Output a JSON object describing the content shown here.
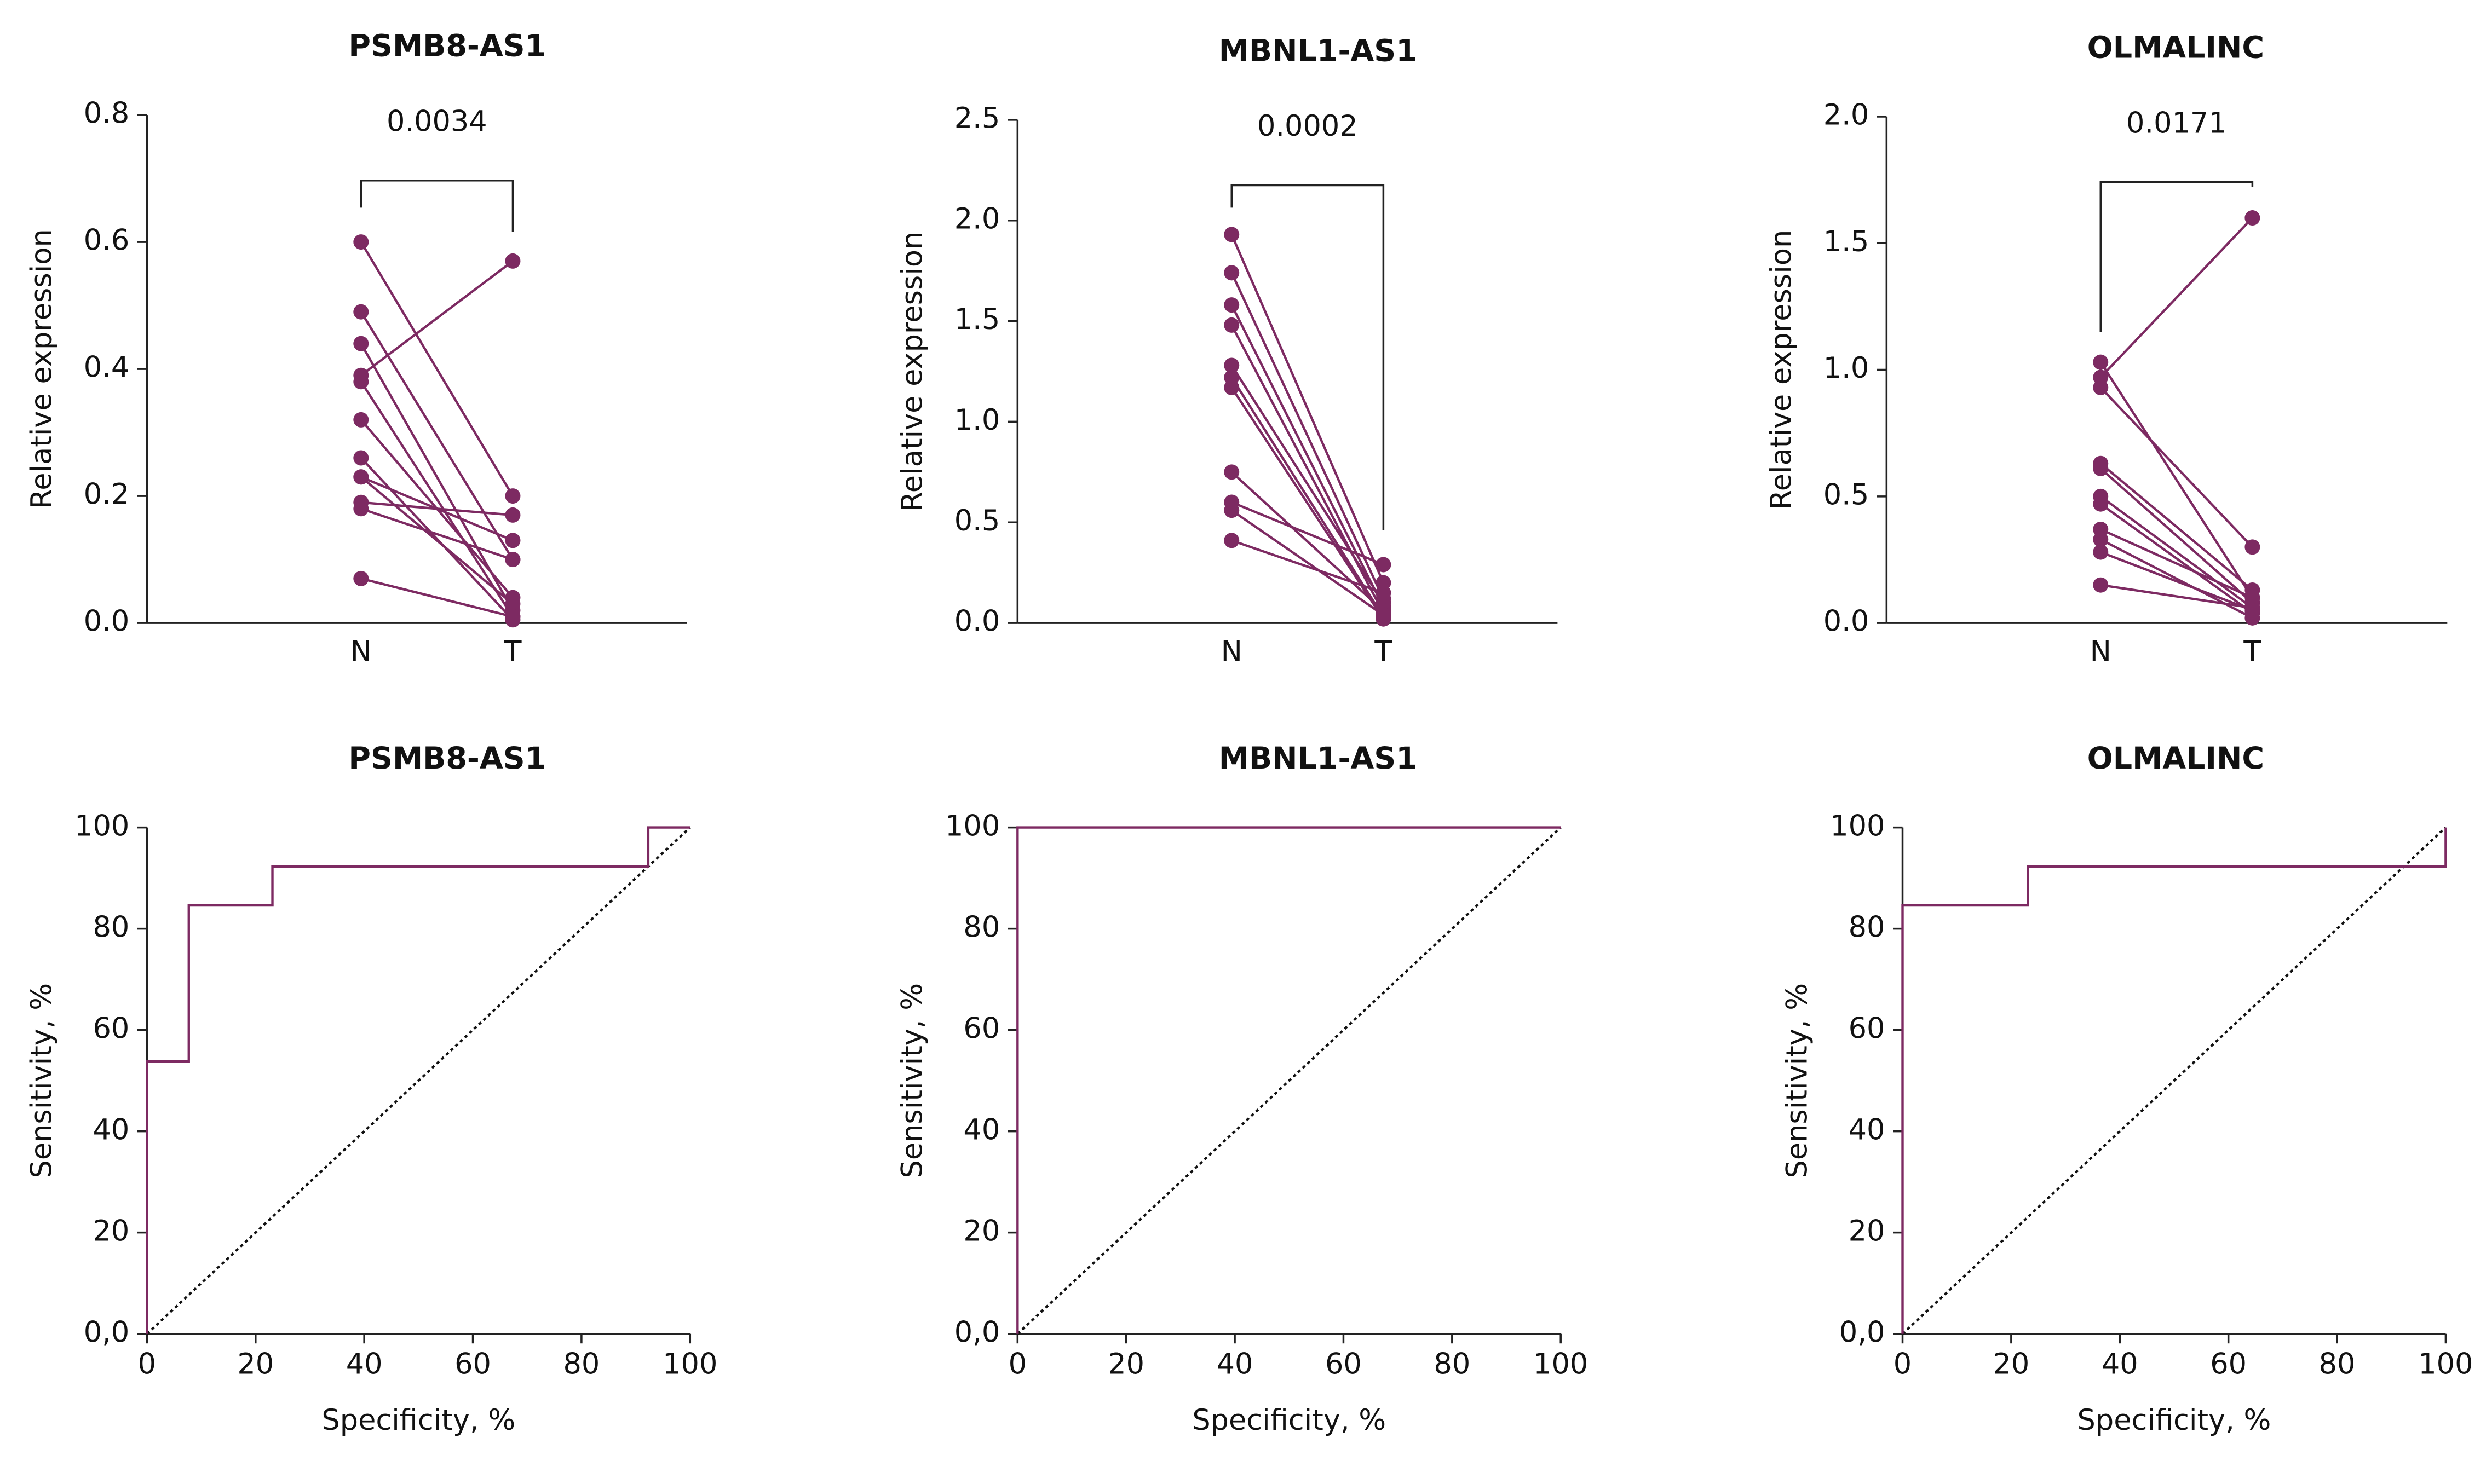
{
  "chart_data": [
    {
      "type": "paired",
      "title": "PSMB8-AS1",
      "ylabel": "Relative expression",
      "categories": [
        "N",
        "T"
      ],
      "color": "#7d2a62",
      "ylim": [
        0,
        0.8
      ],
      "yticks": [
        {
          "value": 0,
          "label": "0.0"
        },
        0.2,
        0.4,
        0.6,
        0.8
      ],
      "annotation": "0.0034",
      "series": [
        {
          "values": [
            0.6,
            0.2
          ]
        },
        {
          "values": [
            0.49,
            0.1
          ]
        },
        {
          "values": [
            0.44,
            0.02
          ]
        },
        {
          "values": [
            0.39,
            0.57
          ]
        },
        {
          "values": [
            0.38,
            0.01
          ]
        },
        {
          "values": [
            0.32,
            0.04
          ]
        },
        {
          "values": [
            0.26,
            0.005
          ]
        },
        {
          "values": [
            0.23,
            0.13
          ]
        },
        {
          "values": [
            0.23,
            0.03
          ]
        },
        {
          "values": [
            0.19,
            0.17
          ]
        },
        {
          "values": [
            0.18,
            0.1
          ]
        },
        {
          "values": [
            0.07,
            0.01
          ]
        }
      ]
    },
    {
      "type": "paired",
      "title": "MBNL1-AS1",
      "ylabel": "Relative expression",
      "categories": [
        "N",
        "T"
      ],
      "color": "#7d2a62",
      "ylim": [
        0,
        2.5
      ],
      "yticks": [
        {
          "value": 0,
          "label": "0.0"
        },
        0.5,
        {
          "value": 1,
          "label": "1.0"
        },
        1.5,
        {
          "value": 2,
          "label": "2.0"
        },
        2.5
      ],
      "annotation": "0.0002",
      "series": [
        {
          "values": [
            1.93,
            0.2
          ]
        },
        {
          "values": [
            1.74,
            0.12
          ]
        },
        {
          "values": [
            1.58,
            0.08
          ]
        },
        {
          "values": [
            1.48,
            0.05
          ]
        },
        {
          "values": [
            1.28,
            0.1
          ]
        },
        {
          "values": [
            1.22,
            0.03
          ]
        },
        {
          "values": [
            1.17,
            0.02
          ]
        },
        {
          "values": [
            0.75,
            0.06
          ]
        },
        {
          "values": [
            0.6,
            0.29
          ]
        },
        {
          "values": [
            0.56,
            0.04
          ]
        },
        {
          "values": [
            0.41,
            0.15
          ]
        }
      ]
    },
    {
      "type": "paired",
      "title": "OLMALINC",
      "ylabel": "Relative expression",
      "categories": [
        "N",
        "T"
      ],
      "color": "#7d2a62",
      "ylim": [
        0,
        2
      ],
      "yticks": [
        {
          "value": 0,
          "label": "0.0"
        },
        0.5,
        {
          "value": 1,
          "label": "1.0"
        },
        1.5,
        {
          "value": 2,
          "label": "2.0"
        }
      ],
      "annotation": "0.0171",
      "series": [
        {
          "values": [
            1.03,
            0.1
          ]
        },
        {
          "values": [
            0.97,
            1.6
          ]
        },
        {
          "values": [
            0.93,
            0.3
          ]
        },
        {
          "values": [
            0.63,
            0.13
          ]
        },
        {
          "values": [
            0.61,
            0.08
          ]
        },
        {
          "values": [
            0.5,
            0.06
          ]
        },
        {
          "values": [
            0.47,
            0.04
          ]
        },
        {
          "values": [
            0.37,
            0.1
          ]
        },
        {
          "values": [
            0.33,
            0.02
          ]
        },
        {
          "values": [
            0.28,
            0.05
          ]
        },
        {
          "values": [
            0.15,
            0.06
          ]
        }
      ]
    },
    {
      "type": "roc",
      "title": "PSMB8-AS1",
      "xlabel": "Specificity, %",
      "ylabel": "Sensitivity, %",
      "color": "#7d2a62",
      "diagonal": true,
      "xlim": [
        0,
        100
      ],
      "xticks": [
        0,
        20,
        40,
        60,
        80,
        100
      ],
      "ylim": [
        0,
        100
      ],
      "yticks": [
        {
          "value": 0,
          "label": "0,0"
        },
        20,
        40,
        60,
        80,
        100
      ],
      "x": [
        0,
        0,
        7.7,
        7.7,
        23.1,
        23.1,
        92.3,
        92.3,
        100
      ],
      "values": [
        0,
        53.8,
        53.8,
        84.6,
        84.6,
        92.3,
        92.3,
        100,
        100
      ]
    },
    {
      "type": "roc",
      "title": "MBNL1-AS1",
      "xlabel": "Specificity, %",
      "ylabel": "Sensitivity, %",
      "color": "#7d2a62",
      "diagonal": true,
      "xlim": [
        0,
        100
      ],
      "xticks": [
        0,
        20,
        40,
        60,
        80,
        100
      ],
      "ylim": [
        0,
        100
      ],
      "yticks": [
        {
          "value": 0,
          "label": "0,0"
        },
        20,
        40,
        60,
        80,
        100
      ],
      "x": [
        0,
        0,
        100
      ],
      "values": [
        0,
        100,
        100
      ]
    },
    {
      "type": "roc",
      "title": "OLMALINC",
      "xlabel": "Specificity, %",
      "ylabel": "Sensitivity, %",
      "color": "#7d2a62",
      "diagonal": true,
      "xlim": [
        0,
        100
      ],
      "xticks": [
        0,
        20,
        40,
        60,
        80,
        100
      ],
      "ylim": [
        0,
        100
      ],
      "yticks": [
        {
          "value": 0,
          "label": "0,0"
        },
        20,
        40,
        60,
        80,
        100
      ],
      "x": [
        0,
        0,
        23.1,
        23.1,
        100,
        100
      ],
      "values": [
        0,
        84.6,
        84.6,
        92.3,
        92.3,
        100
      ]
    }
  ]
}
